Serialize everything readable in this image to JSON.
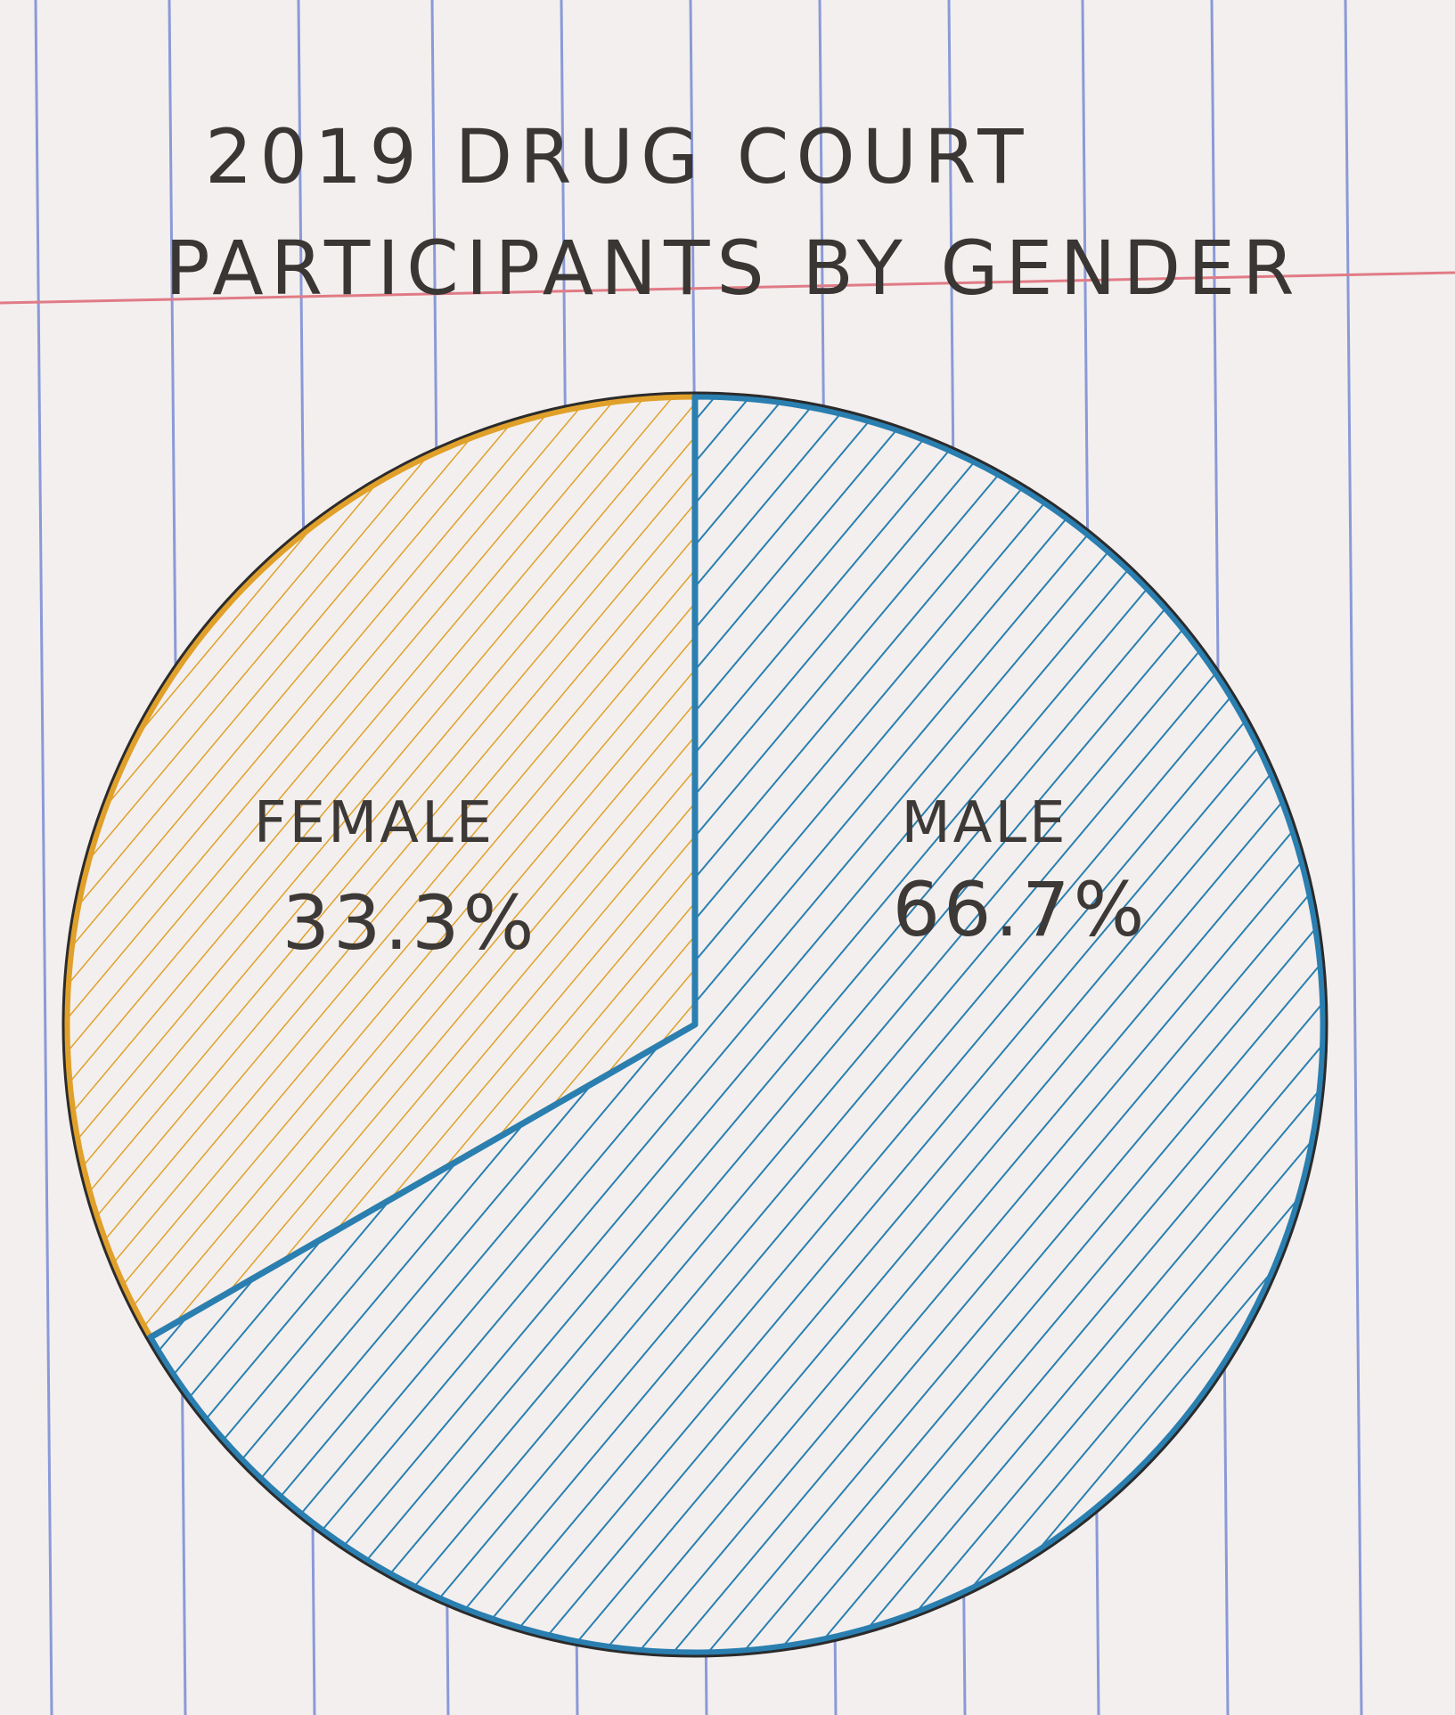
{
  "chart_data": {
    "type": "pie",
    "title": "2019 DRUG COURT PARTICIPANTS BY GENDER",
    "title_lines": [
      "2019 DRUG COURT",
      "PARTICIPANTS BY GENDER"
    ],
    "slices": [
      {
        "label": "FEMALE",
        "value": 33.3,
        "value_label": "33.3%",
        "color": "#e0a02a"
      },
      {
        "label": "MALE",
        "value": 66.7,
        "value_label": "66.7%",
        "color": "#2a7fb0"
      }
    ],
    "outline_color": "#2b2b2b"
  },
  "paper": {
    "background": "#f3efee",
    "rule_color": "#8a9ad8",
    "margin_color": "#e07b86"
  }
}
